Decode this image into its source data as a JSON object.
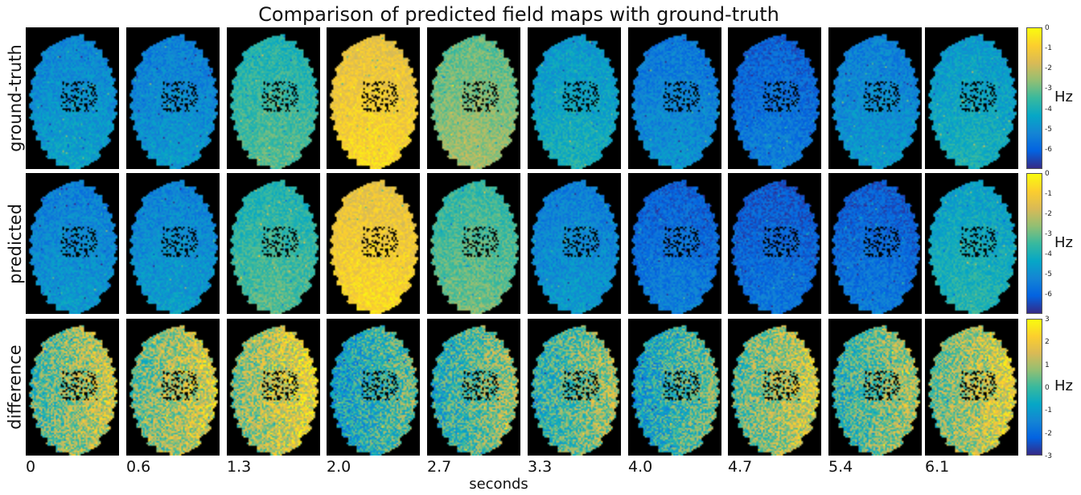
{
  "chart_data": {
    "type": "heatmap",
    "title": "Comparison of predicted field maps with ground-truth",
    "xlabel": "seconds",
    "time_labels": [
      "0",
      "0.6",
      "1.3",
      "2.0",
      "2.7",
      "3.3",
      "4.0",
      "4.7",
      "5.4",
      "6.1"
    ],
    "rows": [
      {
        "label": "ground-truth",
        "unit": "Hz",
        "colorbar_range": [
          -7,
          0
        ],
        "colorbar_ticks": [
          "0",
          "-1",
          "-2",
          "-3",
          "-4",
          "-5",
          "-6"
        ],
        "mean_values": [
          -4.8,
          -5.0,
          -3.5,
          -1.0,
          -2.7,
          -4.3,
          -5.2,
          -5.7,
          -5.0,
          -4.3
        ]
      },
      {
        "label": "predicted",
        "unit": "Hz",
        "colorbar_range": [
          -7,
          0
        ],
        "colorbar_ticks": [
          "0",
          "-1",
          "-2",
          "-3",
          "-4",
          "-5",
          "-6"
        ],
        "mean_values": [
          -5.0,
          -4.9,
          -3.5,
          -1.0,
          -3.2,
          -5.0,
          -5.7,
          -5.9,
          -5.8,
          -4.1
        ]
      },
      {
        "label": "difference",
        "unit": "Hz",
        "colorbar_range": [
          -3,
          3
        ],
        "colorbar_ticks": [
          "3",
          "2",
          "1",
          "0",
          "-1",
          "-2",
          "-3"
        ],
        "mean_values": [
          0.8,
          1.0,
          1.3,
          -0.3,
          0.2,
          0.3,
          -0.2,
          0.9,
          0.4,
          1.1
        ]
      }
    ],
    "colormap": [
      "#352a87",
      "#0363e1",
      "#1485d4",
      "#06a7c6",
      "#38b99e",
      "#92bf73",
      "#d9ba56",
      "#fcce2e",
      "#f9fb0e"
    ]
  }
}
